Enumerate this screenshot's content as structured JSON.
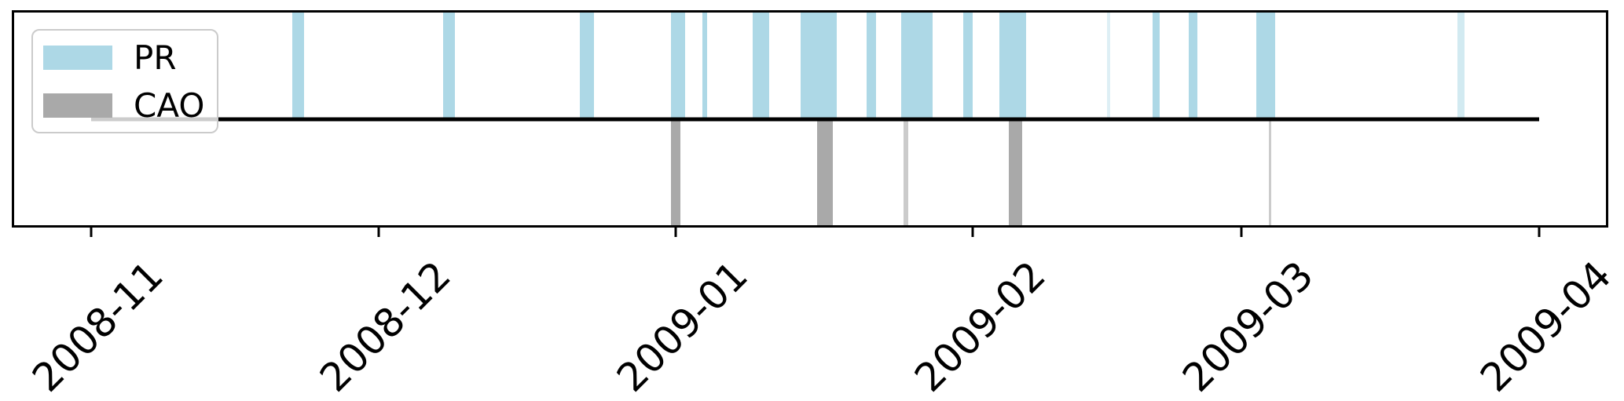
{
  "chart_data": {
    "type": "event-timeline",
    "x_axis": {
      "start": "2008-10-24 00:00",
      "end": "2009-04-08 00:00",
      "tick_rotation_deg": 45,
      "ticks": [
        {
          "date": "2008-11-01",
          "label": "2008-11"
        },
        {
          "date": "2008-12-01",
          "label": "2008-12"
        },
        {
          "date": "2009-01-01",
          "label": "2009-01"
        },
        {
          "date": "2009-02-01",
          "label": "2009-02"
        },
        {
          "date": "2009-03-01",
          "label": "2009-03"
        },
        {
          "date": "2009-04-01",
          "label": "2009-04"
        }
      ]
    },
    "y_axis": {
      "baseline_value": 0,
      "above_value": 1,
      "below_value": -1,
      "visible": false
    },
    "baseline": {
      "start": "2008-11-01 00:00",
      "end": "2009-04-01 00:00",
      "color": "#000000"
    },
    "series": [
      {
        "name": "PR",
        "color": "#ADD8E6",
        "side": "above",
        "events": [
          {
            "start": "2008-11-22 00:00",
            "end": "2008-11-23 06:00",
            "opacity": 1
          },
          {
            "start": "2008-12-07 18:00",
            "end": "2008-12-09 00:00",
            "opacity": 1
          },
          {
            "start": "2008-12-22 00:00",
            "end": "2008-12-23 12:00",
            "opacity": 1
          },
          {
            "start": "2008-12-31 12:00",
            "end": "2009-01-02 00:00",
            "opacity": 1
          },
          {
            "start": "2009-01-03 18:00",
            "end": "2009-01-04 06:00",
            "opacity": 1
          },
          {
            "start": "2009-01-09 00:00",
            "end": "2009-01-10 18:00",
            "opacity": 1
          },
          {
            "start": "2009-01-14 00:00",
            "end": "2009-01-17 18:00",
            "opacity": 1
          },
          {
            "start": "2009-01-20 21:00",
            "end": "2009-01-21 21:00",
            "opacity": 1
          },
          {
            "start": "2009-01-24 12:00",
            "end": "2009-01-27 18:00",
            "opacity": 1
          },
          {
            "start": "2009-01-31 00:00",
            "end": "2009-02-01 00:00",
            "opacity": 1
          },
          {
            "start": "2009-02-03 18:00",
            "end": "2009-02-06 12:00",
            "opacity": 1
          },
          {
            "start": "2009-02-15 00:00",
            "end": "2009-02-15 08:00",
            "opacity": 0.4
          },
          {
            "start": "2009-02-19 18:00",
            "end": "2009-02-20 12:00",
            "opacity": 1
          },
          {
            "start": "2009-02-23 12:00",
            "end": "2009-02-24 09:00",
            "opacity": 1
          },
          {
            "start": "2009-03-02 12:00",
            "end": "2009-03-04 12:00",
            "opacity": 1
          },
          {
            "start": "2009-03-23 12:00",
            "end": "2009-03-24 06:00",
            "opacity": 0.55
          }
        ]
      },
      {
        "name": "CAO",
        "color": "#A9A9A9",
        "side": "below",
        "events": [
          {
            "start": "2008-12-31 12:00",
            "end": "2009-01-01 12:00",
            "opacity": 1
          },
          {
            "start": "2009-01-15 18:00",
            "end": "2009-01-17 09:00",
            "opacity": 1
          },
          {
            "start": "2009-01-24 18:00",
            "end": "2009-01-25 06:00",
            "opacity": 0.6
          },
          {
            "start": "2009-02-04 18:00",
            "end": "2009-02-06 03:00",
            "opacity": 1
          },
          {
            "start": "2009-03-03 21:00",
            "end": "2009-03-04 03:00",
            "opacity": 0.6
          }
        ]
      }
    ],
    "legend": {
      "position": "upper-left",
      "entries": [
        {
          "label": "PR",
          "color": "#ADD8E6"
        },
        {
          "label": "CAO",
          "color": "#A9A9A9"
        }
      ]
    }
  }
}
